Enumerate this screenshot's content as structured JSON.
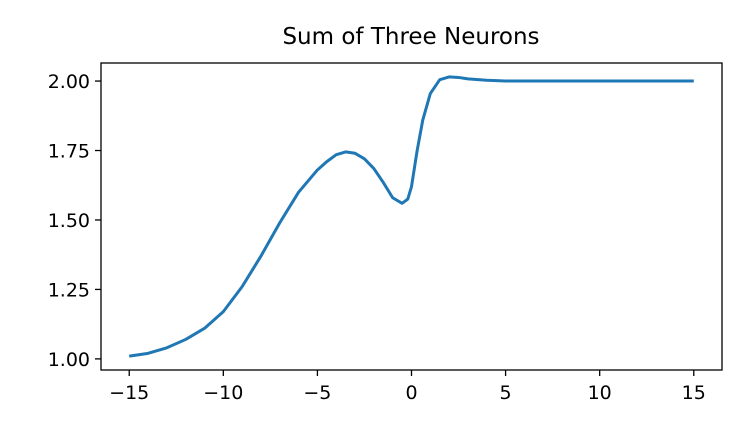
{
  "chart_data": {
    "type": "line",
    "title": "Sum of Three Neurons",
    "xlabel": "",
    "ylabel": "",
    "xlim": [
      -16.5,
      16.5
    ],
    "ylim": [
      0.96,
      2.065
    ],
    "xticks": [
      -15,
      -10,
      -5,
      0,
      5,
      10,
      15
    ],
    "xtick_labels": [
      "−15",
      "−10",
      "−5",
      "0",
      "5",
      "10",
      "15"
    ],
    "yticks": [
      1.0,
      1.25,
      1.5,
      1.75,
      2.0
    ],
    "ytick_labels": [
      "1.00",
      "1.25",
      "1.50",
      "1.75",
      "2.00"
    ],
    "grid": false,
    "legend": "none",
    "line_color": "#1f77b4",
    "series": [
      {
        "x": [
          -15,
          -14,
          -13,
          -12,
          -11,
          -10,
          -9,
          -8,
          -7,
          -6,
          -5,
          -4.5,
          -4,
          -3.5,
          -3,
          -2.5,
          -2,
          -1.5,
          -1,
          -0.5,
          -0.2,
          0,
          0.3,
          0.6,
          1,
          1.5,
          2,
          2.5,
          3,
          4,
          5,
          7,
          10,
          12,
          15
        ],
        "y": [
          1.01,
          1.02,
          1.04,
          1.07,
          1.11,
          1.17,
          1.26,
          1.37,
          1.49,
          1.6,
          1.68,
          1.71,
          1.735,
          1.745,
          1.74,
          1.72,
          1.685,
          1.635,
          1.58,
          1.56,
          1.575,
          1.62,
          1.75,
          1.86,
          1.955,
          2.005,
          2.015,
          2.013,
          2.008,
          2.003,
          2.0,
          2.0,
          2.0,
          2.0,
          2.0
        ]
      }
    ]
  }
}
